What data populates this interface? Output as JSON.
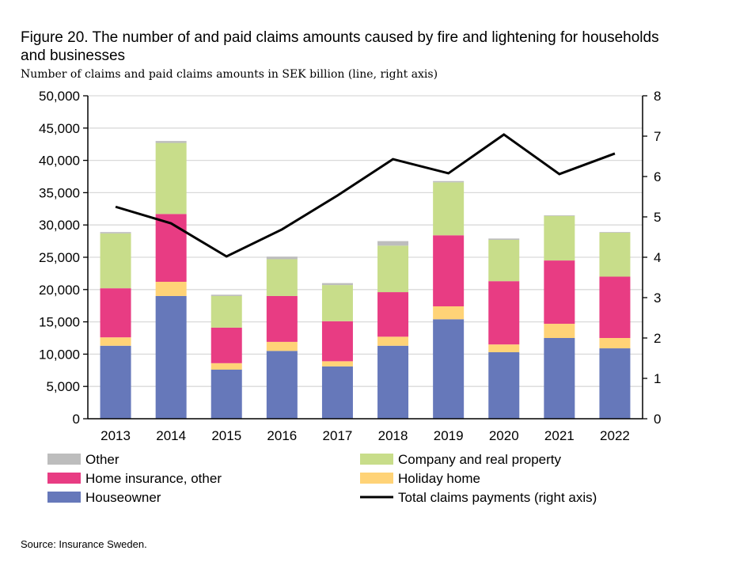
{
  "chart_data": {
    "type": "bar",
    "stacked": true,
    "title": "Figure 20. The number of and paid claims amounts caused by fire and lightening for households and businesses",
    "subtitle": "Number of claims and paid claims amounts in SEK billion (line, right axis)",
    "categories": [
      "2013",
      "2014",
      "2015",
      "2016",
      "2017",
      "2018",
      "2019",
      "2020",
      "2021",
      "2022"
    ],
    "ylim": [
      0,
      50000
    ],
    "yticks": [
      "0",
      "5,000",
      "10,000",
      "15,000",
      "20,000",
      "25,000",
      "30,000",
      "35,000",
      "40,000",
      "45,000",
      "50,000"
    ],
    "y2lim": [
      0,
      8
    ],
    "y2ticks": [
      "0",
      "1",
      "2",
      "3",
      "4",
      "5",
      "6",
      "7",
      "8"
    ],
    "grid": true,
    "legend_position": "bottom",
    "series": [
      {
        "name": "Houseowner",
        "color": "#6678BA",
        "values": [
          11300,
          19000,
          7600,
          10500,
          8100,
          11300,
          15400,
          10300,
          12500,
          10900
        ]
      },
      {
        "name": "Holiday home",
        "color": "#FFD377",
        "values": [
          1300,
          2200,
          1000,
          1400,
          800,
          1400,
          2000,
          1200,
          2200,
          1600
        ]
      },
      {
        "name": "Home insurance, other",
        "color": "#E83C83",
        "values": [
          7600,
          10500,
          5500,
          7100,
          6200,
          6900,
          11000,
          9800,
          9800,
          9500
        ]
      },
      {
        "name": "Company and real property",
        "color": "#C8DD8A",
        "values": [
          8500,
          11000,
          4900,
          5700,
          5600,
          7200,
          8200,
          6400,
          6900,
          6800
        ]
      },
      {
        "name": "Other",
        "color": "#BDBDBD",
        "values": [
          200,
          300,
          200,
          400,
          300,
          700,
          200,
          200,
          100,
          100
        ]
      }
    ],
    "line": {
      "name": "Total claims payments (right axis)",
      "color": "#000000",
      "axis": "right",
      "values": [
        5.25,
        4.84,
        4.02,
        4.69,
        5.53,
        6.43,
        6.08,
        7.04,
        6.06,
        6.57
      ]
    }
  },
  "legend": [
    {
      "label": "Other",
      "key": "Other"
    },
    {
      "label": "Company and real property",
      "key": "Company and real property"
    },
    {
      "label": "Home insurance, other",
      "key": "Home insurance, other"
    },
    {
      "label": "Holiday home",
      "key": "Holiday home"
    },
    {
      "label": "Houseowner",
      "key": "Houseowner"
    },
    {
      "label": "Total claims payments (right axis)",
      "key": "line"
    }
  ],
  "source": "Source: Insurance Sweden."
}
